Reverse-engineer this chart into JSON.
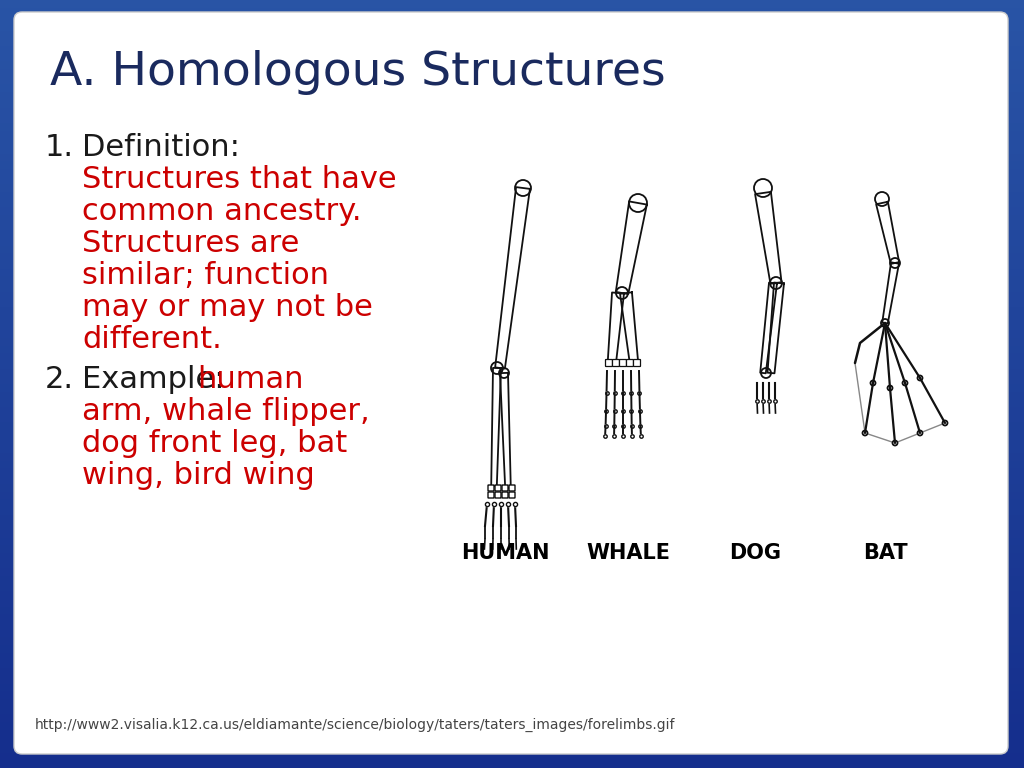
{
  "title": "A. Homologous Structures",
  "title_color": "#1a2a5e",
  "title_fontsize": 34,
  "point1_label": "Definition:",
  "point1_label_color": "#1a1a1a",
  "point1_text_lines": [
    "Structures that have",
    "common ancestry.",
    "Structures are",
    "similar; function",
    "may or may not be",
    "different."
  ],
  "point1_text_color": "#cc0000",
  "point2_label": "Example:",
  "point2_label_color": "#1a1a1a",
  "point2_text_lines": [
    "human",
    "arm, whale flipper,",
    "dog front leg, bat",
    "wing, bird wing"
  ],
  "point2_text_color": "#cc0000",
  "url_text": "http://www2.visalia.k12.ca.us/eldiamante/science/biology/taters/taters_images/forelimbs.gif",
  "url_color": "#444444",
  "url_fontsize": 10,
  "bg_outer": "#2255aa",
  "bg_inner": "#ffffff",
  "label_fontsize": 22,
  "text_fontsize": 22,
  "number_fontsize": 22,
  "animal_labels": [
    "HUMAN",
    "WHALE",
    "DOG",
    "BAT"
  ],
  "animal_label_fontsize": 15,
  "animal_label_color": "#000000",
  "bone_color": "#111111",
  "bone_lw_thick": 2.5,
  "bone_lw_medium": 1.8,
  "bone_lw_thin": 1.2
}
